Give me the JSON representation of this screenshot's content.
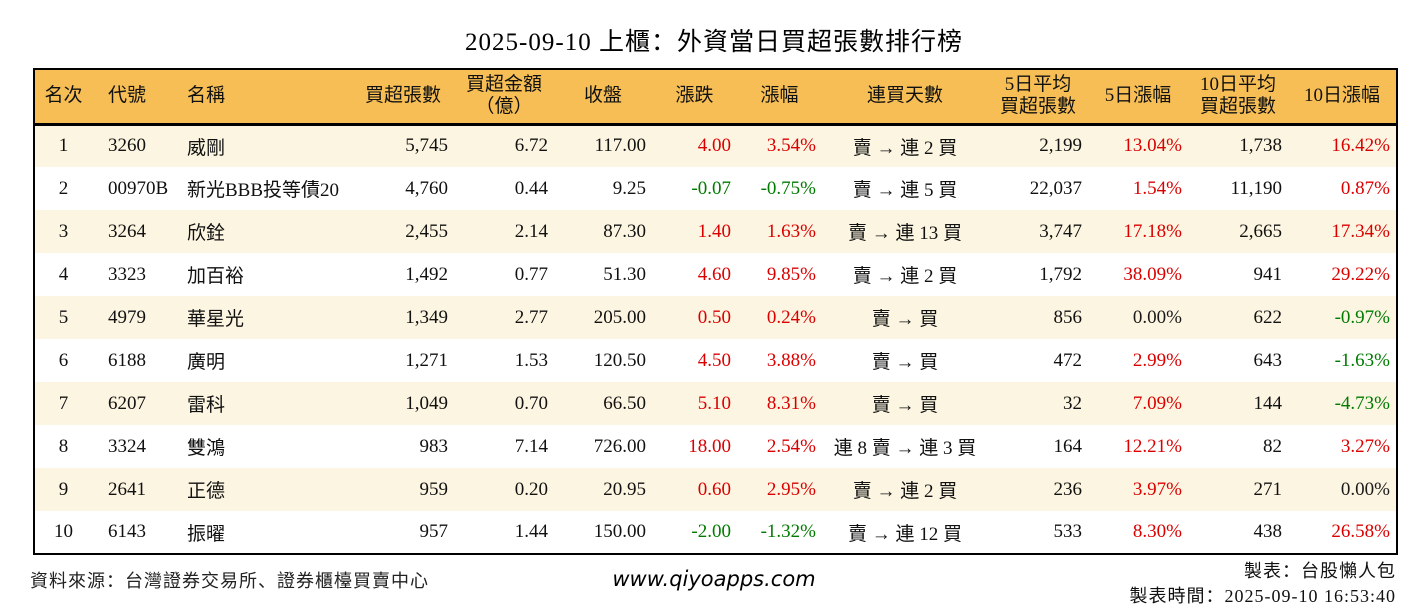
{
  "title": "2025-09-10 上櫃：外資當日買超張數排行榜",
  "colors": {
    "header_bg": "#F6BE55",
    "row_alt_bg": "#FCF5E1",
    "up_red": "#DB0000",
    "down_green": "#007B00",
    "flat_black": "#1A1A1A",
    "border": "#000000"
  },
  "chart_data": {
    "type": "table",
    "title": "2025-09-10 上櫃：外資當日買超張數排行榜",
    "columns": [
      {
        "key": "rank",
        "label": "名次",
        "align": "center",
        "colored": false
      },
      {
        "key": "code",
        "label": "代號",
        "align": "left",
        "colored": false
      },
      {
        "key": "name",
        "label": "名稱",
        "align": "left",
        "colored": false
      },
      {
        "key": "buy_vol",
        "label": "買超張數",
        "align": "right",
        "colored": false
      },
      {
        "key": "buy_amt",
        "label": "買超金額\n（億）",
        "align": "right",
        "colored": false
      },
      {
        "key": "close",
        "label": "收盤",
        "align": "right",
        "colored": false
      },
      {
        "key": "change",
        "label": "漲跌",
        "align": "right",
        "colored": true
      },
      {
        "key": "change_pct",
        "label": "漲幅",
        "align": "right",
        "colored": true
      },
      {
        "key": "streak",
        "label": "連買天數",
        "align": "center",
        "colored": false
      },
      {
        "key": "avg5",
        "label": "5日平均\n買超張數",
        "align": "right",
        "colored": false
      },
      {
        "key": "pct5",
        "label": "5日漲幅",
        "align": "right",
        "colored": true
      },
      {
        "key": "avg10",
        "label": "10日平均\n買超張數",
        "align": "right",
        "colored": false
      },
      {
        "key": "pct10",
        "label": "10日漲幅",
        "align": "right",
        "colored": true
      }
    ],
    "rows": [
      {
        "rank": "1",
        "code": "3260",
        "name": "威剛",
        "buy_vol": "5,745",
        "buy_amt": "6.72",
        "close": "117.00",
        "change": {
          "v": "4.00",
          "dir": "up"
        },
        "change_pct": {
          "v": "3.54%",
          "dir": "up"
        },
        "streak": "賣 → 連 2 買",
        "avg5": "2,199",
        "pct5": {
          "v": "13.04%",
          "dir": "up"
        },
        "avg10": "1,738",
        "pct10": {
          "v": "16.42%",
          "dir": "up"
        }
      },
      {
        "rank": "2",
        "code": "00970B",
        "name": "新光BBB投等債20",
        "buy_vol": "4,760",
        "buy_amt": "0.44",
        "close": "9.25",
        "change": {
          "v": "-0.07",
          "dir": "down"
        },
        "change_pct": {
          "v": "-0.75%",
          "dir": "down"
        },
        "streak": "賣 → 連 5 買",
        "avg5": "22,037",
        "pct5": {
          "v": "1.54%",
          "dir": "up"
        },
        "avg10": "11,190",
        "pct10": {
          "v": "0.87%",
          "dir": "up"
        }
      },
      {
        "rank": "3",
        "code": "3264",
        "name": "欣銓",
        "buy_vol": "2,455",
        "buy_amt": "2.14",
        "close": "87.30",
        "change": {
          "v": "1.40",
          "dir": "up"
        },
        "change_pct": {
          "v": "1.63%",
          "dir": "up"
        },
        "streak": "賣 → 連 13 買",
        "avg5": "3,747",
        "pct5": {
          "v": "17.18%",
          "dir": "up"
        },
        "avg10": "2,665",
        "pct10": {
          "v": "17.34%",
          "dir": "up"
        }
      },
      {
        "rank": "4",
        "code": "3323",
        "name": "加百裕",
        "buy_vol": "1,492",
        "buy_amt": "0.77",
        "close": "51.30",
        "change": {
          "v": "4.60",
          "dir": "up"
        },
        "change_pct": {
          "v": "9.85%",
          "dir": "up"
        },
        "streak": "賣 → 連 2 買",
        "avg5": "1,792",
        "pct5": {
          "v": "38.09%",
          "dir": "up"
        },
        "avg10": "941",
        "pct10": {
          "v": "29.22%",
          "dir": "up"
        }
      },
      {
        "rank": "5",
        "code": "4979",
        "name": "華星光",
        "buy_vol": "1,349",
        "buy_amt": "2.77",
        "close": "205.00",
        "change": {
          "v": "0.50",
          "dir": "up"
        },
        "change_pct": {
          "v": "0.24%",
          "dir": "up"
        },
        "streak": "賣 → 買",
        "avg5": "856",
        "pct5": {
          "v": "0.00%",
          "dir": "flat"
        },
        "avg10": "622",
        "pct10": {
          "v": "-0.97%",
          "dir": "down"
        }
      },
      {
        "rank": "6",
        "code": "6188",
        "name": "廣明",
        "buy_vol": "1,271",
        "buy_amt": "1.53",
        "close": "120.50",
        "change": {
          "v": "4.50",
          "dir": "up"
        },
        "change_pct": {
          "v": "3.88%",
          "dir": "up"
        },
        "streak": "賣 → 買",
        "avg5": "472",
        "pct5": {
          "v": "2.99%",
          "dir": "up"
        },
        "avg10": "643",
        "pct10": {
          "v": "-1.63%",
          "dir": "down"
        }
      },
      {
        "rank": "7",
        "code": "6207",
        "name": "雷科",
        "buy_vol": "1,049",
        "buy_amt": "0.70",
        "close": "66.50",
        "change": {
          "v": "5.10",
          "dir": "up"
        },
        "change_pct": {
          "v": "8.31%",
          "dir": "up"
        },
        "streak": "賣 → 買",
        "avg5": "32",
        "pct5": {
          "v": "7.09%",
          "dir": "up"
        },
        "avg10": "144",
        "pct10": {
          "v": "-4.73%",
          "dir": "down"
        }
      },
      {
        "rank": "8",
        "code": "3324",
        "name": "雙鴻",
        "buy_vol": "983",
        "buy_amt": "7.14",
        "close": "726.00",
        "change": {
          "v": "18.00",
          "dir": "up"
        },
        "change_pct": {
          "v": "2.54%",
          "dir": "up"
        },
        "streak": "連 8 賣 → 連 3 買",
        "avg5": "164",
        "pct5": {
          "v": "12.21%",
          "dir": "up"
        },
        "avg10": "82",
        "pct10": {
          "v": "3.27%",
          "dir": "up"
        }
      },
      {
        "rank": "9",
        "code": "2641",
        "name": "正德",
        "buy_vol": "959",
        "buy_amt": "0.20",
        "close": "20.95",
        "change": {
          "v": "0.60",
          "dir": "up"
        },
        "change_pct": {
          "v": "2.95%",
          "dir": "up"
        },
        "streak": "賣 → 連 2 買",
        "avg5": "236",
        "pct5": {
          "v": "3.97%",
          "dir": "up"
        },
        "avg10": "271",
        "pct10": {
          "v": "0.00%",
          "dir": "flat"
        }
      },
      {
        "rank": "10",
        "code": "6143",
        "name": "振曜",
        "buy_vol": "957",
        "buy_amt": "1.44",
        "close": "150.00",
        "change": {
          "v": "-2.00",
          "dir": "down"
        },
        "change_pct": {
          "v": "-1.32%",
          "dir": "down"
        },
        "streak": "賣 → 連 12 買",
        "avg5": "533",
        "pct5": {
          "v": "8.30%",
          "dir": "up"
        },
        "avg10": "438",
        "pct10": {
          "v": "26.58%",
          "dir": "up"
        }
      }
    ]
  },
  "footer": {
    "source": "資料來源：台灣證券交易所、證券櫃檯買賣中心",
    "website": "www.qiyoapps.com",
    "author": "製表：台股懶人包",
    "timestamp": "製表時間：2025-09-10 16:53:40"
  }
}
